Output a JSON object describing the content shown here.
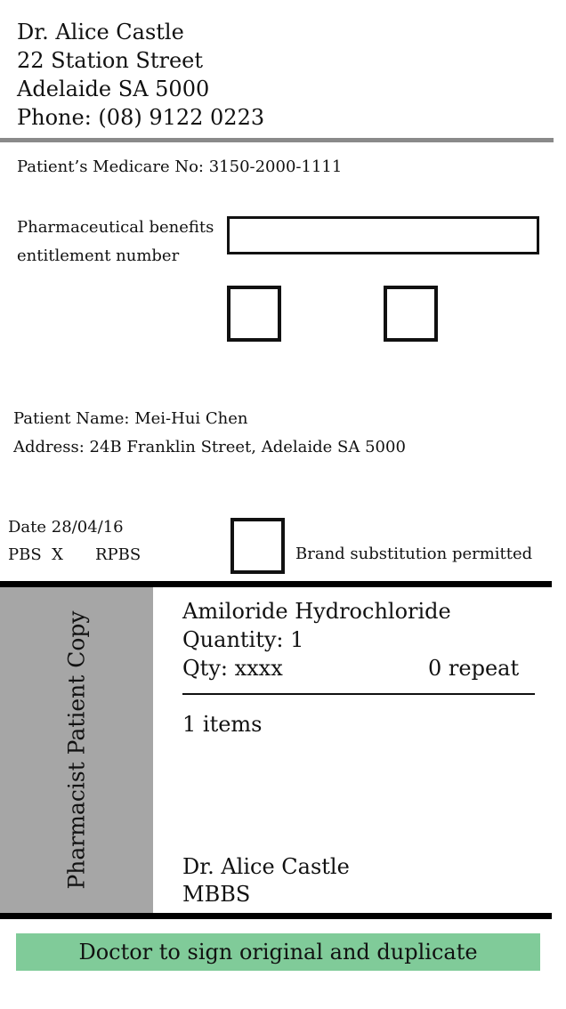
{
  "doctor": {
    "name": "Dr. Alice Castle",
    "street": "22 Station Street",
    "city": "Adelaide SA 5000",
    "phone": "Phone: (08) 9122 0223"
  },
  "medicare": "Patient’s Medicare No: 3150-2000-1111",
  "pbe": {
    "label_line1": "Pharmaceutical benefits",
    "label_line2": "entitlement number",
    "value": ""
  },
  "patient": {
    "name": "Patient Name: Mei-Hui Chen",
    "address": "Address: 24B Franklin Street, Adelaide SA 5000"
  },
  "prescription_meta": {
    "date": "Date 28/04/16",
    "pbs_label": "PBS",
    "pbs_mark": "X",
    "rpbs_label": "RPBS",
    "brand_substitution": "Brand substitution permitted"
  },
  "side_label": "Pharmacist Patient Copy",
  "item": {
    "drug": "Amiloride Hydrochloride",
    "quantity": "Quantity: 1",
    "qty": "Qty: xxxx",
    "repeat": "0 repeat",
    "items_count": "1 items"
  },
  "prescriber": {
    "name": "Dr. Alice Castle",
    "qualification": "MBBS"
  },
  "banner": "Doctor to sign original and duplicate",
  "colors": {
    "side_panel": "#a6a6a6",
    "banner": "#80cb99",
    "header_rule": "#8a8a8a"
  }
}
